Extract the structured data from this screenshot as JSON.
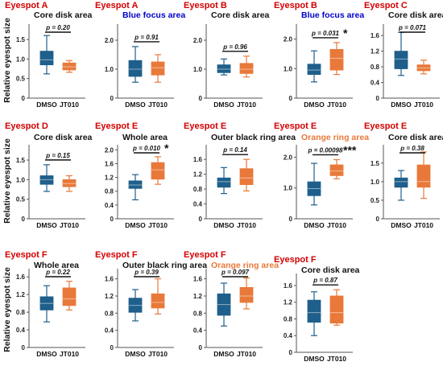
{
  "colors": {
    "dmso": "#1f5f8b",
    "jt010": "#e8793a",
    "title_red": "#d40000",
    "sub_blue": "#0000cc",
    "sub_orange": "#e8793a",
    "sub_black": "#111111"
  },
  "ylabel": "Relative eyespot size",
  "chart_data": [
    {
      "type": "box",
      "title": "Eyespot A",
      "subtitle": "Core disk area",
      "subtitle_color": "black",
      "categories": [
        "DMSO",
        "JT010"
      ],
      "yticks": [
        0,
        0.5,
        1.0,
        1.5
      ],
      "ylim": [
        0,
        1.85
      ],
      "p_text": "p = 0.20",
      "stars": "",
      "boxes": [
        {
          "min": 0.62,
          "q1": 0.85,
          "median": 0.98,
          "q3": 1.2,
          "max": 1.6
        },
        {
          "min": 0.66,
          "q1": 0.72,
          "median": 0.8,
          "q3": 0.9,
          "max": 0.96
        }
      ]
    },
    {
      "type": "box",
      "title": "Eyespot A",
      "subtitle": "Blue focus area",
      "subtitle_color": "blue",
      "categories": [
        "DMSO",
        "JT010"
      ],
      "yticks": [
        0,
        1.0,
        2.0
      ],
      "ylim": [
        0,
        2.5
      ],
      "p_text": "p = 0.91",
      "stars": "",
      "boxes": [
        {
          "min": 0.55,
          "q1": 0.75,
          "median": 1.0,
          "q3": 1.3,
          "max": 1.78
        },
        {
          "min": 0.55,
          "q1": 0.8,
          "median": 1.05,
          "q3": 1.25,
          "max": 1.5
        }
      ]
    },
    {
      "type": "box",
      "title": "Eyespot B",
      "subtitle": "Core disk area",
      "subtitle_color": "black",
      "categories": [
        "DMSO",
        "JT010"
      ],
      "yticks": [
        0,
        1.0,
        2.0
      ],
      "ylim": [
        0,
        2.5
      ],
      "p_text": "p = 0.96",
      "stars": "",
      "boxes": [
        {
          "min": 0.8,
          "q1": 0.88,
          "median": 1.0,
          "q3": 1.15,
          "max": 1.35
        },
        {
          "min": 0.73,
          "q1": 0.85,
          "median": 1.0,
          "q3": 1.2,
          "max": 1.45
        }
      ]
    },
    {
      "type": "box",
      "title": "Eyespot B",
      "subtitle": "Blue focus area",
      "subtitle_color": "blue",
      "categories": [
        "DMSO",
        "JT010"
      ],
      "yticks": [
        0,
        1.0,
        2.0
      ],
      "ylim": [
        0,
        2.45
      ],
      "p_text": "p = 0.031",
      "stars": "*",
      "boxes": [
        {
          "min": 0.55,
          "q1": 0.8,
          "median": 0.95,
          "q3": 1.15,
          "max": 1.6
        },
        {
          "min": 0.8,
          "q1": 0.95,
          "median": 1.35,
          "q3": 1.65,
          "max": 1.88
        }
      ]
    },
    {
      "type": "box",
      "title": "Eyespot C",
      "subtitle": "Core disk area",
      "subtitle_color": "black",
      "categories": [
        "DMSO",
        "JT010"
      ],
      "yticks": [
        0,
        0.4,
        0.8,
        1.2,
        1.6
      ],
      "ylim": [
        0,
        1.85
      ],
      "p_text": "p = 0.071",
      "stars": "",
      "boxes": [
        {
          "min": 0.58,
          "q1": 0.75,
          "median": 1.0,
          "q3": 1.2,
          "max": 1.68
        },
        {
          "min": 0.62,
          "q1": 0.7,
          "median": 0.77,
          "q3": 0.85,
          "max": 0.97
        }
      ]
    },
    {
      "type": "box",
      "title": "Eyespot D",
      "subtitle": "Core disk area",
      "subtitle_color": "black",
      "categories": [
        "DMSO",
        "JT010"
      ],
      "yticks": [
        0,
        0.5,
        1.0,
        1.5
      ],
      "ylim": [
        0,
        1.85
      ],
      "p_text": "p = 0.15",
      "stars": "",
      "boxes": [
        {
          "min": 0.7,
          "q1": 0.88,
          "median": 1.0,
          "q3": 1.1,
          "max": 1.38
        },
        {
          "min": 0.7,
          "q1": 0.82,
          "median": 0.9,
          "q3": 1.0,
          "max": 1.1
        }
      ]
    },
    {
      "type": "box",
      "title": "Eyespot E",
      "subtitle": "Whole area",
      "subtitle_color": "black",
      "categories": [
        "DMSO",
        "JT010"
      ],
      "yticks": [
        0,
        0.4,
        0.8,
        1.2,
        1.6,
        2.0
      ],
      "ylim": [
        0,
        2.1
      ],
      "p_text": "p = 0.010",
      "stars": "*",
      "boxes": [
        {
          "min": 0.55,
          "q1": 0.88,
          "median": 0.98,
          "q3": 1.1,
          "max": 1.28
        },
        {
          "min": 1.0,
          "q1": 1.15,
          "median": 1.42,
          "q3": 1.63,
          "max": 1.8
        }
      ]
    },
    {
      "type": "box",
      "title": "Eyespot E",
      "subtitle": "Outer black ring area",
      "subtitle_color": "black",
      "categories": [
        "DMSO",
        "JT010"
      ],
      "yticks": [
        0,
        0.4,
        0.8,
        1.2,
        1.6
      ],
      "ylim": [
        0,
        1.95
      ],
      "p_text": "p = 0.14",
      "stars": "",
      "boxes": [
        {
          "min": 0.68,
          "q1": 0.85,
          "median": 1.0,
          "q3": 1.1,
          "max": 1.38
        },
        {
          "min": 0.75,
          "q1": 0.92,
          "median": 1.1,
          "q3": 1.35,
          "max": 1.6
        }
      ]
    },
    {
      "type": "box",
      "title": "Eyespot E",
      "subtitle": "Orange ring area",
      "subtitle_color": "orange",
      "categories": [
        "DMSO",
        "JT010"
      ],
      "yticks": [
        0,
        1.0,
        2.0
      ],
      "ylim": [
        0,
        2.35
      ],
      "p_text": "p = 0.00098",
      "stars": "***",
      "boxes": [
        {
          "min": 0.45,
          "q1": 0.75,
          "median": 0.98,
          "q3": 1.2,
          "max": 1.8
        },
        {
          "min": 1.3,
          "q1": 1.4,
          "median": 1.55,
          "q3": 1.75,
          "max": 1.92
        }
      ]
    },
    {
      "type": "box",
      "title": "Eyespot E",
      "subtitle": "Core disk area",
      "subtitle_color": "black",
      "categories": [
        "DMSO",
        "JT010"
      ],
      "yticks": [
        0,
        0.5,
        1.0,
        1.5
      ],
      "ylim": [
        0,
        1.95
      ],
      "p_text": "p = 0.38",
      "stars": "",
      "boxes": [
        {
          "min": 0.5,
          "q1": 0.85,
          "median": 1.0,
          "q3": 1.1,
          "max": 1.3
        },
        {
          "min": 0.55,
          "q1": 0.85,
          "median": 1.0,
          "q3": 1.45,
          "max": 1.8
        }
      ]
    },
    {
      "type": "box",
      "title": "Eyespot F",
      "subtitle": "Whole area",
      "subtitle_color": "black",
      "categories": [
        "DMSO",
        "JT010"
      ],
      "yticks": [
        0,
        0.4,
        0.8,
        1.2,
        1.6
      ],
      "ylim": [
        0,
        1.75
      ],
      "p_text": "p = 0.22",
      "stars": "",
      "boxes": [
        {
          "min": 0.58,
          "q1": 0.85,
          "median": 1.0,
          "q3": 1.15,
          "max": 1.4
        },
        {
          "min": 0.85,
          "q1": 0.95,
          "median": 1.1,
          "q3": 1.35,
          "max": 1.5
        }
      ]
    },
    {
      "type": "box",
      "title": "Eyespot F",
      "subtitle": "Outer black ring area",
      "subtitle_color": "black",
      "categories": [
        "DMSO",
        "JT010"
      ],
      "yticks": [
        0,
        0.4,
        0.8,
        1.2,
        1.6
      ],
      "ylim": [
        0,
        1.8
      ],
      "p_text": "p = 0.39",
      "stars": "",
      "boxes": [
        {
          "min": 0.62,
          "q1": 0.82,
          "median": 0.98,
          "q3": 1.15,
          "max": 1.35
        },
        {
          "min": 0.78,
          "q1": 0.92,
          "median": 1.05,
          "q3": 1.25,
          "max": 1.6
        }
      ]
    },
    {
      "type": "box",
      "title": "Eyespot F",
      "subtitle": "Orange ring area",
      "subtitle_color": "orange",
      "categories": [
        "DMSO",
        "JT010"
      ],
      "yticks": [
        0,
        0.4,
        0.8,
        1.2,
        1.6
      ],
      "ylim": [
        0,
        1.8
      ],
      "p_text": "p = 0.097",
      "stars": "",
      "boxes": [
        {
          "min": 0.5,
          "q1": 0.75,
          "median": 1.0,
          "q3": 1.25,
          "max": 1.5
        },
        {
          "min": 0.9,
          "q1": 1.05,
          "median": 1.2,
          "q3": 1.4,
          "max": 1.62
        }
      ]
    },
    {
      "type": "box",
      "title": "Eyespot F",
      "subtitle": "Core disk area",
      "subtitle_color": "black",
      "categories": [
        "DMSO",
        "JT010"
      ],
      "yticks": [
        0,
        0.4,
        0.8,
        1.2,
        1.6
      ],
      "ylim": [
        0,
        1.85
      ],
      "p_text": "p = 0.87",
      "stars": "",
      "boxes": [
        {
          "min": 0.4,
          "q1": 0.72,
          "median": 0.95,
          "q3": 1.25,
          "max": 1.45
        },
        {
          "min": 0.65,
          "q1": 0.7,
          "median": 0.95,
          "q3": 1.35,
          "max": 1.5
        }
      ]
    }
  ]
}
